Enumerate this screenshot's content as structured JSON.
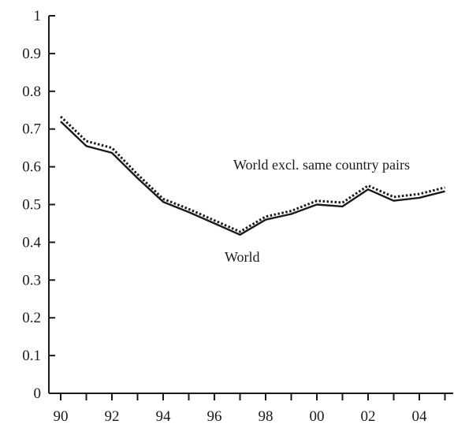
{
  "chart_data": {
    "type": "line",
    "x": [
      "90",
      "91",
      "92",
      "93",
      "94",
      "95",
      "96",
      "97",
      "98",
      "99",
      "00",
      "01",
      "02",
      "03",
      "04",
      "05"
    ],
    "x_tick_labels": [
      "90",
      "92",
      "94",
      "96",
      "98",
      "00",
      "02",
      "04"
    ],
    "ylim": [
      0,
      1
    ],
    "y_tick_labels": [
      "0",
      "0.1",
      "0.2",
      "0.3",
      "0.4",
      "0.5",
      "0.6",
      "0.7",
      "0.8",
      "0.9",
      "1"
    ],
    "grid": false,
    "series": [
      {
        "name": "World",
        "style": "solid",
        "color": "#1a1a1a",
        "values": [
          0.72,
          0.655,
          0.637,
          0.57,
          0.507,
          0.48,
          0.45,
          0.42,
          0.46,
          0.475,
          0.5,
          0.495,
          0.54,
          0.51,
          0.518,
          0.535
        ]
      },
      {
        "name": "World excl. same country pairs",
        "style": "dotted",
        "color": "#1a1a1a",
        "values": [
          0.733,
          0.668,
          0.65,
          0.58,
          0.515,
          0.488,
          0.458,
          0.428,
          0.468,
          0.483,
          0.51,
          0.505,
          0.55,
          0.52,
          0.528,
          0.545
        ]
      }
    ],
    "annotations": [
      "World excl. same country pairs",
      "World"
    ]
  }
}
